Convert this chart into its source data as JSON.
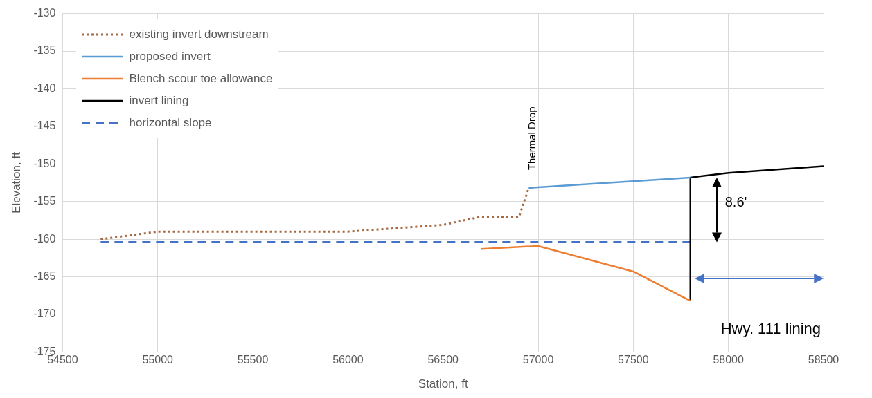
{
  "chart_data": {
    "type": "line",
    "xlabel": "Station, ft",
    "ylabel": "Elevation, ft",
    "xlim": [
      54500,
      58500
    ],
    "xticks": [
      54500,
      55000,
      55500,
      56000,
      56500,
      57000,
      57500,
      58000,
      58500
    ],
    "ylim": [
      -175,
      -130
    ],
    "yticks": [
      -175,
      -170,
      -165,
      -160,
      -155,
      -150,
      -145,
      -140,
      -135,
      -130
    ],
    "grid": true,
    "legend": "top left",
    "marker": "none",
    "series": [
      {
        "name": "existing invert downstream",
        "color": "#a5683f",
        "line_style": "dotted",
        "x": [
          54700,
          55000,
          56000,
          56500,
          56700,
          56900,
          56950
        ],
        "values": [
          -160,
          -159,
          -159,
          -158.1,
          -157,
          -157,
          -153.2
        ]
      },
      {
        "name": "proposed invert",
        "color": "#5b9bd5",
        "line_style": "solid",
        "x": [
          56950,
          57000,
          57800
        ],
        "values": [
          -153.2,
          -153.1,
          -151.8
        ]
      },
      {
        "name": "Blench scour toe allowance",
        "color": "#ed7d31",
        "line_style": "solid",
        "x": [
          56700,
          57000,
          57500,
          57800
        ],
        "values": [
          -161.3,
          -160.9,
          -164.3,
          -168.2
        ]
      },
      {
        "name": "invert lining",
        "color": "#000000",
        "line_style": "solid",
        "x": [
          57800,
          57800,
          58000,
          58500
        ],
        "values": [
          -168.2,
          -151.8,
          -151.2,
          -150.3
        ]
      },
      {
        "name": "horizontal slope",
        "color": "#4472c4",
        "line_style": "dashed",
        "x": [
          54700,
          57800
        ],
        "values": [
          -160.4,
          -160.4
        ]
      }
    ],
    "annotations": [
      "Thermal Drop",
      "8.6'",
      "Hwy. 111 lining"
    ]
  }
}
